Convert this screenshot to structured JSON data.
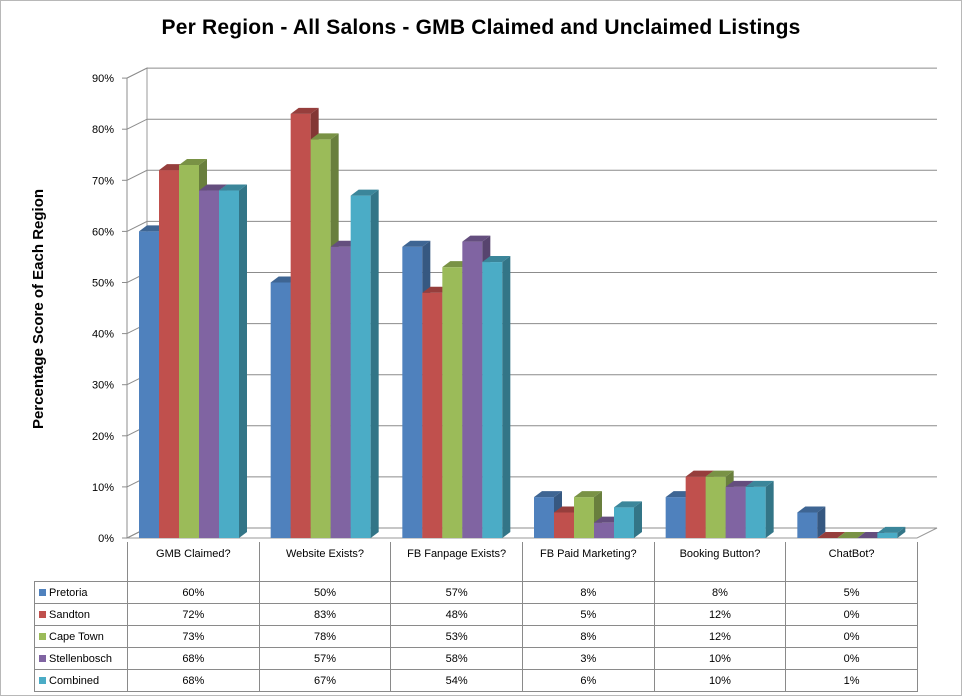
{
  "chart_data": {
    "type": "bar",
    "title": "Per Region - All Salons - GMB Claimed and Unclaimed Listings",
    "ylabel": "Percentage Score of Each Region",
    "xlabel": "",
    "ylim": [
      0,
      90
    ],
    "yticks": [
      "0%",
      "10%",
      "20%",
      "30%",
      "40%",
      "50%",
      "60%",
      "70%",
      "80%",
      "90%"
    ],
    "grid": true,
    "legend": "data-table",
    "categories": [
      "GMB Claimed?",
      "Website Exists?",
      "FB Fanpage Exists?",
      "FB Paid Marketing?",
      "Booking Button?",
      "ChatBot?"
    ],
    "series": [
      {
        "name": "Pretoria",
        "color": "#4f81bd",
        "values": [
          60,
          50,
          57,
          8,
          8,
          5
        ],
        "labels": [
          "60%",
          "50%",
          "57%",
          "8%",
          "8%",
          "5%"
        ]
      },
      {
        "name": "Sandton",
        "color": "#c0504d",
        "values": [
          72,
          83,
          48,
          5,
          12,
          0
        ],
        "labels": [
          "72%",
          "83%",
          "48%",
          "5%",
          "12%",
          "0%"
        ]
      },
      {
        "name": "Cape Town",
        "color": "#9bbb59",
        "values": [
          73,
          78,
          53,
          8,
          12,
          0
        ],
        "labels": [
          "73%",
          "78%",
          "53%",
          "8%",
          "12%",
          "0%"
        ]
      },
      {
        "name": "Stellenbosch",
        "color": "#8064a2",
        "values": [
          68,
          57,
          58,
          3,
          10,
          0
        ],
        "labels": [
          "68%",
          "57%",
          "58%",
          "3%",
          "10%",
          "0%"
        ]
      },
      {
        "name": "Combined",
        "color": "#4bacc6",
        "values": [
          68,
          67,
          54,
          6,
          10,
          1
        ],
        "labels": [
          "68%",
          "67%",
          "54%",
          "6%",
          "10%",
          "1%"
        ]
      }
    ]
  }
}
